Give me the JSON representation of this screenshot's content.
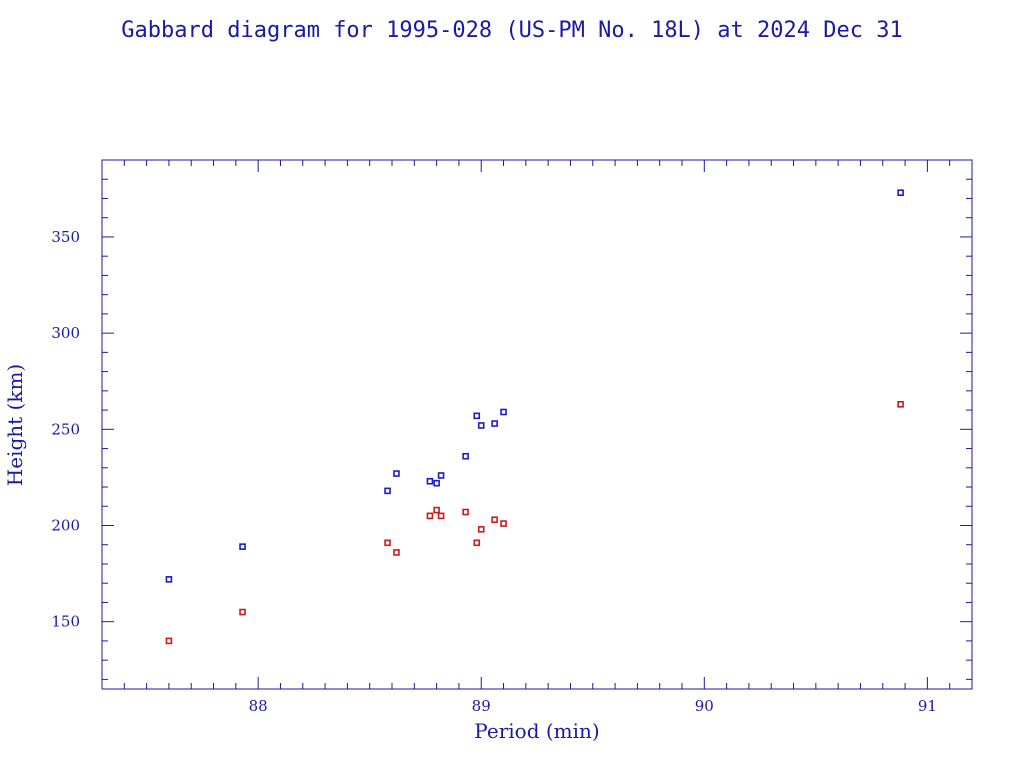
{
  "chart_data": {
    "type": "scatter",
    "title": "Gabbard diagram for 1995-028 (US-PM No. 18L) at 2024 Dec 31",
    "xlabel": "Period (min)",
    "ylabel": "Height (km)",
    "xlim": [
      87.3,
      91.2
    ],
    "ylim": [
      115,
      390
    ],
    "x_major_ticks": [
      88,
      89,
      90,
      91
    ],
    "x_minor_step": 0.1,
    "y_major_ticks": [
      150,
      200,
      250,
      300,
      350
    ],
    "y_minor_step": 10,
    "x_tick_labels": [
      "88",
      "89",
      "90",
      "91"
    ],
    "y_tick_labels": [
      "150",
      "200",
      "250",
      "300",
      "350"
    ],
    "grid": false,
    "legend": "none",
    "series": [
      {
        "color": "#1a1ad0",
        "x": [
          87.6,
          87.93,
          88.58,
          88.62,
          88.77,
          88.8,
          88.82,
          88.93,
          88.98,
          89.0,
          89.06,
          89.1,
          90.88
        ],
        "y": [
          172,
          189,
          218,
          227,
          223,
          222,
          226,
          236,
          257,
          252,
          253,
          259,
          373
        ]
      },
      {
        "color": "#cc1a1a",
        "x": [
          87.6,
          87.93,
          88.58,
          88.62,
          88.77,
          88.8,
          88.82,
          88.93,
          88.98,
          89.0,
          89.06,
          89.1,
          90.88
        ],
        "y": [
          140,
          155,
          191,
          186,
          205,
          208,
          205,
          207,
          191,
          198,
          203,
          201,
          263
        ]
      }
    ],
    "colors": {
      "axis": "#1a1aa6",
      "text": "#1a1aa6"
    }
  }
}
